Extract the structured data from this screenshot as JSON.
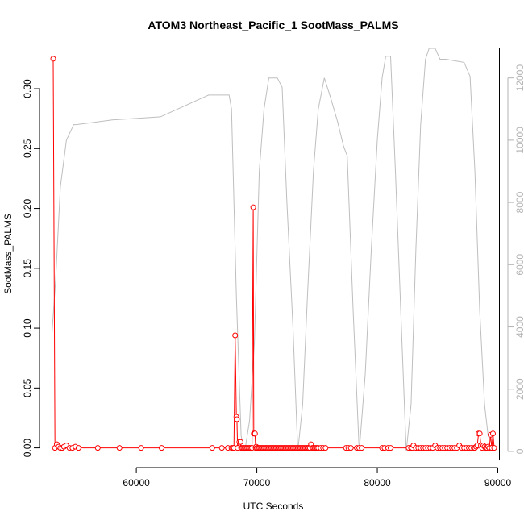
{
  "chart_data": {
    "type": "line",
    "title": "ATOM3 Northeast_Pacific_1 SootMass_PALMS",
    "xlabel": "UTC Seconds",
    "ylabel": "SootMass_PALMS",
    "xlim": [
      52700,
      90100
    ],
    "ylim": [
      -0.0097,
      0.3337
    ],
    "y2lim": [
      -260,
      12950
    ],
    "x_ticks": [
      60000,
      70000,
      80000,
      90000
    ],
    "x_tick_labels": [
      "60000",
      "70000",
      "80000",
      "90000"
    ],
    "y_ticks": [
      0.0,
      0.05,
      0.1,
      0.15,
      0.2,
      0.25,
      0.3
    ],
    "y_tick_labels": [
      "0.00",
      "0.05",
      "0.10",
      "0.15",
      "0.20",
      "0.25",
      "0.30"
    ],
    "y2_ticks": [
      0,
      2000,
      4000,
      6000,
      8000,
      10000,
      12000
    ],
    "y2_tick_labels": [
      "0",
      "2000",
      "4000",
      "6000",
      "8000",
      "10000",
      "12000"
    ],
    "grid": false,
    "colors": {
      "soot": "#ff0000",
      "altitude": "#bebebe",
      "axis": "#000000",
      "right_axis": "#b3b3b3"
    },
    "series": [
      {
        "role": "soot",
        "axis": "left",
        "markers": "open-circle",
        "x": [
          53100,
          53250,
          53400,
          53550,
          53700,
          53850,
          54000,
          54200,
          54450,
          54700,
          54950,
          55200,
          56800,
          58600,
          60400,
          62100,
          66300,
          67100,
          67600,
          67900,
          68000,
          68100,
          68200,
          68300,
          68350,
          68400,
          68550,
          68650,
          68700,
          68800,
          68900,
          69000,
          69100,
          69200,
          69300,
          69400,
          69500,
          69600,
          69700,
          69750,
          69800,
          69850,
          69900,
          69950,
          70000,
          70100,
          70200,
          70300,
          70400,
          70500,
          70600,
          70700,
          70800,
          70900,
          71000,
          71100,
          71200,
          71300,
          71400,
          71500,
          71600,
          71700,
          71800,
          71900,
          72000,
          72100,
          72200,
          72300,
          72400,
          72500,
          72600,
          72700,
          72800,
          72900,
          73000,
          73100,
          73200,
          73300,
          73400,
          73500,
          73600,
          73700,
          73800,
          73900,
          74000,
          74100,
          74200,
          74300,
          74400,
          74500,
          74600,
          74700,
          74800,
          74900,
          75000,
          75100,
          75300,
          75500,
          75700,
          77400,
          77600,
          77800,
          78300,
          78500,
          78700,
          80400,
          80600,
          80900,
          81100,
          82600,
          82800,
          82900,
          83000,
          83200,
          83400,
          83600,
          83800,
          84000,
          84200,
          84400,
          84600,
          84800,
          85000,
          85200,
          85400,
          85600,
          85800,
          86000,
          86200,
          86400,
          86600,
          86800,
          87000,
          87200,
          87400,
          87600,
          87800,
          88000,
          88100,
          88200,
          88300,
          88400,
          88500,
          88600,
          88700,
          88800,
          88900,
          89000,
          89100,
          89200,
          89300,
          89400,
          89500,
          89600,
          89700
        ],
        "y": [
          0.325,
          0.0,
          0.003,
          0.001,
          0.0,
          0.0,
          0.001,
          0.002,
          0.0,
          0.0,
          0.001,
          0.0,
          0.0,
          0.0,
          0.0,
          0.0,
          0.0,
          0.0,
          0.0,
          0.0,
          0.0,
          0.0,
          0.094,
          0.026,
          0.024,
          0.0,
          0.005,
          0.005,
          0.0,
          0.0,
          0.0,
          0.0,
          0.0,
          0.0,
          0.0,
          0.0,
          0.0,
          0.0,
          0.201,
          0.012,
          0.012,
          0.012,
          0.0,
          0.001,
          0.0,
          0.0,
          0.0,
          0.0,
          0.0,
          0.0,
          0.0,
          0.0,
          0.0,
          0.0,
          0.0,
          0.0,
          0.0,
          0.0,
          0.0,
          0.0,
          0.0,
          0.0,
          0.0,
          0.0,
          0.0,
          0.0,
          0.0,
          0.0,
          0.0,
          0.0,
          0.0,
          0.0,
          0.0,
          0.0,
          0.0,
          0.0,
          0.0,
          0.0,
          0.0,
          0.0,
          0.0,
          0.0,
          0.0,
          0.0,
          0.0,
          0.0,
          0.0,
          0.0,
          0.0,
          0.003,
          0.0,
          0.0,
          0.0,
          0.0,
          0.0,
          0.0,
          0.0,
          0.0,
          0.0,
          0.0,
          0.0,
          0.0,
          0.0,
          0.0,
          0.0,
          0.0,
          0.0,
          0.0,
          0.0,
          0.0,
          0.0,
          0.0,
          0.002,
          0.0,
          0.0,
          0.0,
          0.0,
          0.0,
          0.0,
          0.0,
          0.0,
          0.002,
          0.0,
          0.0,
          0.0,
          0.0,
          0.0,
          0.0,
          0.0,
          0.0,
          0.0,
          0.002,
          0.0,
          0.0,
          0.0,
          0.0,
          0.0,
          0.0,
          0.0,
          0.001,
          0.002,
          0.012,
          0.012,
          0.002,
          0.0,
          0.002,
          0.001,
          0.0,
          0.0,
          0.001,
          0.0,
          0.011,
          0.0,
          0.012,
          0.0
        ]
      },
      {
        "role": "altitude",
        "axis": "right",
        "markers": "none",
        "x": [
          53000,
          53300,
          53700,
          54200,
          54800,
          55000,
          56000,
          58000,
          60000,
          62000,
          64000,
          66000,
          67200,
          67700,
          67900,
          68300,
          68700,
          69000,
          69400,
          69800,
          70200,
          70600,
          71000,
          71400,
          71700,
          72100,
          72500,
          73000,
          73400,
          73800,
          74200,
          74700,
          75100,
          75600,
          76100,
          76700,
          77200,
          77500,
          78000,
          78500,
          79000,
          79500,
          80000,
          80400,
          80700,
          81100,
          81500,
          82000,
          82400,
          82800,
          83200,
          83600,
          84000,
          84300,
          84800,
          85200,
          85700,
          86400,
          87200,
          87700,
          88100,
          88500,
          88900,
          89200,
          89600,
          89800
        ],
        "y": [
          3800,
          5500,
          8500,
          10000,
          10500,
          10500,
          10550,
          10650,
          10700,
          10750,
          11100,
          11450,
          11450,
          11450,
          11000,
          5000,
          500,
          0,
          1000,
          3500,
          9000,
          11000,
          12000,
          12000,
          12000,
          11700,
          8000,
          4000,
          0,
          1500,
          5000,
          9000,
          11000,
          12000,
          11400,
          10600,
          9800,
          9500,
          4500,
          0,
          2500,
          6500,
          10000,
          12000,
          12700,
          12700,
          9000,
          4000,
          0,
          1500,
          6500,
          10500,
          12600,
          12950,
          12950,
          12600,
          12600,
          12550,
          12500,
          12050,
          9000,
          4500,
          1500,
          500,
          200,
          100
        ]
      }
    ]
  }
}
